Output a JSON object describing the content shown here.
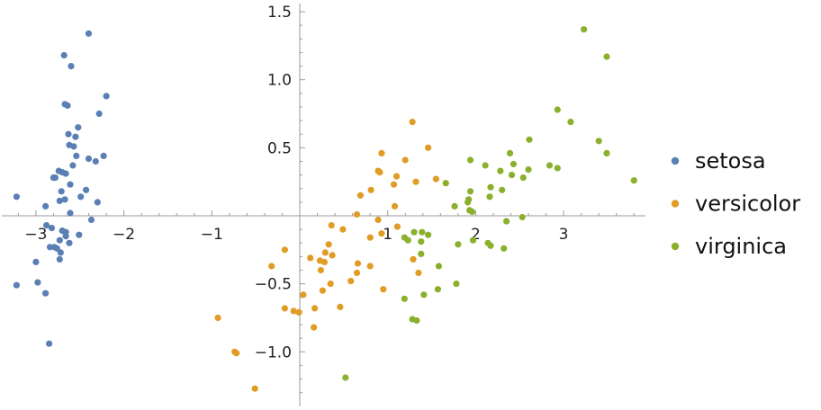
{
  "chart_data": {
    "type": "scatter",
    "title": "",
    "xlabel": "",
    "ylabel": "",
    "xlim": [
      -3.35,
      3.9
    ],
    "ylim": [
      -1.4,
      1.55
    ],
    "grid": false,
    "legend_position": "right",
    "x_ticks": [
      {
        "value": -3,
        "label": "−3"
      },
      {
        "value": -2,
        "label": "−2"
      },
      {
        "value": -1,
        "label": "−1"
      },
      {
        "value": 1,
        "label": "1"
      },
      {
        "value": 2,
        "label": "2"
      },
      {
        "value": 3,
        "label": "3"
      }
    ],
    "y_ticks": [
      {
        "value": 1.5,
        "label": "1.5"
      },
      {
        "value": 1.0,
        "label": "1.0"
      },
      {
        "value": 0.5,
        "label": "0.5"
      },
      {
        "value": -0.5,
        "label": "−0.5"
      },
      {
        "value": -1.0,
        "label": "−1.0"
      }
    ],
    "series": [
      {
        "name": "setosa",
        "color": "#5b7fb4",
        "points": [
          [
            -2.68,
            1.18
          ],
          [
            -2.6,
            1.1
          ],
          [
            -2.4,
            1.34
          ],
          [
            -2.2,
            0.88
          ],
          [
            -2.67,
            0.82
          ],
          [
            -2.64,
            0.81
          ],
          [
            -2.28,
            0.75
          ],
          [
            -2.52,
            0.65
          ],
          [
            -2.63,
            0.6
          ],
          [
            -2.55,
            0.58
          ],
          [
            -2.62,
            0.52
          ],
          [
            -2.57,
            0.51
          ],
          [
            -2.4,
            0.42
          ],
          [
            -2.54,
            0.44
          ],
          [
            -2.32,
            0.4
          ],
          [
            -2.23,
            0.44
          ],
          [
            -2.58,
            0.37
          ],
          [
            -2.74,
            0.33
          ],
          [
            -2.7,
            0.32
          ],
          [
            -2.66,
            0.31
          ],
          [
            -2.8,
            0.28
          ],
          [
            -2.78,
            0.28
          ],
          [
            -2.61,
            0.23
          ],
          [
            -2.43,
            0.19
          ],
          [
            -2.71,
            0.18
          ],
          [
            -2.49,
            0.14
          ],
          [
            -2.67,
            0.12
          ],
          [
            -2.73,
            0.11
          ],
          [
            -2.3,
            0.1
          ],
          [
            -3.22,
            0.14
          ],
          [
            -2.89,
            0.07
          ],
          [
            -2.61,
            0.02
          ],
          [
            -2.37,
            -0.03
          ],
          [
            -2.88,
            -0.07
          ],
          [
            -2.82,
            -0.09
          ],
          [
            -2.7,
            -0.11
          ],
          [
            -2.66,
            -0.12
          ],
          [
            -2.51,
            -0.14
          ],
          [
            -2.66,
            -0.15
          ],
          [
            -2.73,
            -0.18
          ],
          [
            -2.62,
            -0.2
          ],
          [
            -2.79,
            -0.23
          ],
          [
            -2.76,
            -0.24
          ],
          [
            -2.84,
            -0.23
          ],
          [
            -2.72,
            -0.27
          ],
          [
            -3.0,
            -0.34
          ],
          [
            -2.73,
            -0.32
          ],
          [
            -2.98,
            -0.49
          ],
          [
            -3.22,
            -0.51
          ],
          [
            -2.89,
            -0.57
          ],
          [
            -2.85,
            -0.94
          ]
        ]
      },
      {
        "name": "versicolor",
        "color": "#e09c24",
        "points": [
          [
            1.28,
            0.69
          ],
          [
            1.46,
            0.5
          ],
          [
            0.93,
            0.46
          ],
          [
            1.2,
            0.41
          ],
          [
            0.89,
            0.33
          ],
          [
            0.91,
            0.32
          ],
          [
            1.1,
            0.29
          ],
          [
            1.55,
            0.27
          ],
          [
            1.32,
            0.25
          ],
          [
            1.07,
            0.23
          ],
          [
            0.81,
            0.19
          ],
          [
            0.69,
            0.15
          ],
          [
            1.08,
            0.07
          ],
          [
            0.65,
            0.01
          ],
          [
            0.89,
            -0.03
          ],
          [
            0.36,
            -0.07
          ],
          [
            1.11,
            -0.08
          ],
          [
            0.49,
            -0.1
          ],
          [
            0.93,
            -0.13
          ],
          [
            0.8,
            -0.16
          ],
          [
            0.33,
            -0.21
          ],
          [
            0.29,
            -0.27
          ],
          [
            0.37,
            -0.29
          ],
          [
            0.12,
            -0.31
          ],
          [
            0.23,
            -0.33
          ],
          [
            0.28,
            -0.34
          ],
          [
            1.29,
            -0.32
          ],
          [
            0.66,
            -0.35
          ],
          [
            -0.32,
            -0.37
          ],
          [
            0.8,
            -0.37
          ],
          [
            0.24,
            -0.4
          ],
          [
            0.65,
            -0.42
          ],
          [
            1.35,
            -0.42
          ],
          [
            0.58,
            -0.48
          ],
          [
            0.35,
            -0.5
          ],
          [
            0.95,
            -0.54
          ],
          [
            0.26,
            -0.55
          ],
          [
            0.04,
            -0.58
          ],
          [
            0.17,
            -0.68
          ],
          [
            0.46,
            -0.67
          ],
          [
            -0.17,
            -0.68
          ],
          [
            -0.07,
            -0.7
          ],
          [
            -0.01,
            -0.71
          ],
          [
            -0.93,
            -0.75
          ],
          [
            0.16,
            -0.82
          ],
          [
            -0.74,
            -1.0
          ],
          [
            -0.72,
            -1.01
          ],
          [
            -0.51,
            -1.27
          ],
          [
            -0.17,
            -0.25
          ]
        ]
      },
      {
        "name": "virginica",
        "color": "#8ab02c",
        "points": [
          [
            3.23,
            1.37
          ],
          [
            3.49,
            1.17
          ],
          [
            2.93,
            0.78
          ],
          [
            3.08,
            0.69
          ],
          [
            2.61,
            0.56
          ],
          [
            3.4,
            0.55
          ],
          [
            3.49,
            0.46
          ],
          [
            2.39,
            0.46
          ],
          [
            1.94,
            0.41
          ],
          [
            2.43,
            0.38
          ],
          [
            2.11,
            0.37
          ],
          [
            2.84,
            0.37
          ],
          [
            2.93,
            0.35
          ],
          [
            2.6,
            0.34
          ],
          [
            2.28,
            0.33
          ],
          [
            2.41,
            0.3
          ],
          [
            2.54,
            0.28
          ],
          [
            3.8,
            0.26
          ],
          [
            1.66,
            0.24
          ],
          [
            2.17,
            0.21
          ],
          [
            2.3,
            0.19
          ],
          [
            1.94,
            0.18
          ],
          [
            2.16,
            0.14
          ],
          [
            1.92,
            0.12
          ],
          [
            1.91,
            0.1
          ],
          [
            1.76,
            0.07
          ],
          [
            1.93,
            0.04
          ],
          [
            1.96,
            0.03
          ],
          [
            2.53,
            -0.01
          ],
          [
            2.35,
            -0.04
          ],
          [
            1.39,
            -0.12
          ],
          [
            1.3,
            -0.12
          ],
          [
            1.46,
            -0.14
          ],
          [
            1.19,
            -0.16
          ],
          [
            1.23,
            -0.18
          ],
          [
            1.97,
            -0.18
          ],
          [
            1.38,
            -0.19
          ],
          [
            2.14,
            -0.2
          ],
          [
            1.8,
            -0.21
          ],
          [
            2.17,
            -0.22
          ],
          [
            2.32,
            -0.24
          ],
          [
            1.38,
            -0.28
          ],
          [
            1.58,
            -0.37
          ],
          [
            1.78,
            -0.5
          ],
          [
            1.57,
            -0.54
          ],
          [
            1.41,
            -0.58
          ],
          [
            1.19,
            -0.61
          ],
          [
            1.28,
            -0.76
          ],
          [
            1.33,
            -0.77
          ],
          [
            0.52,
            -1.19
          ]
        ]
      }
    ]
  }
}
